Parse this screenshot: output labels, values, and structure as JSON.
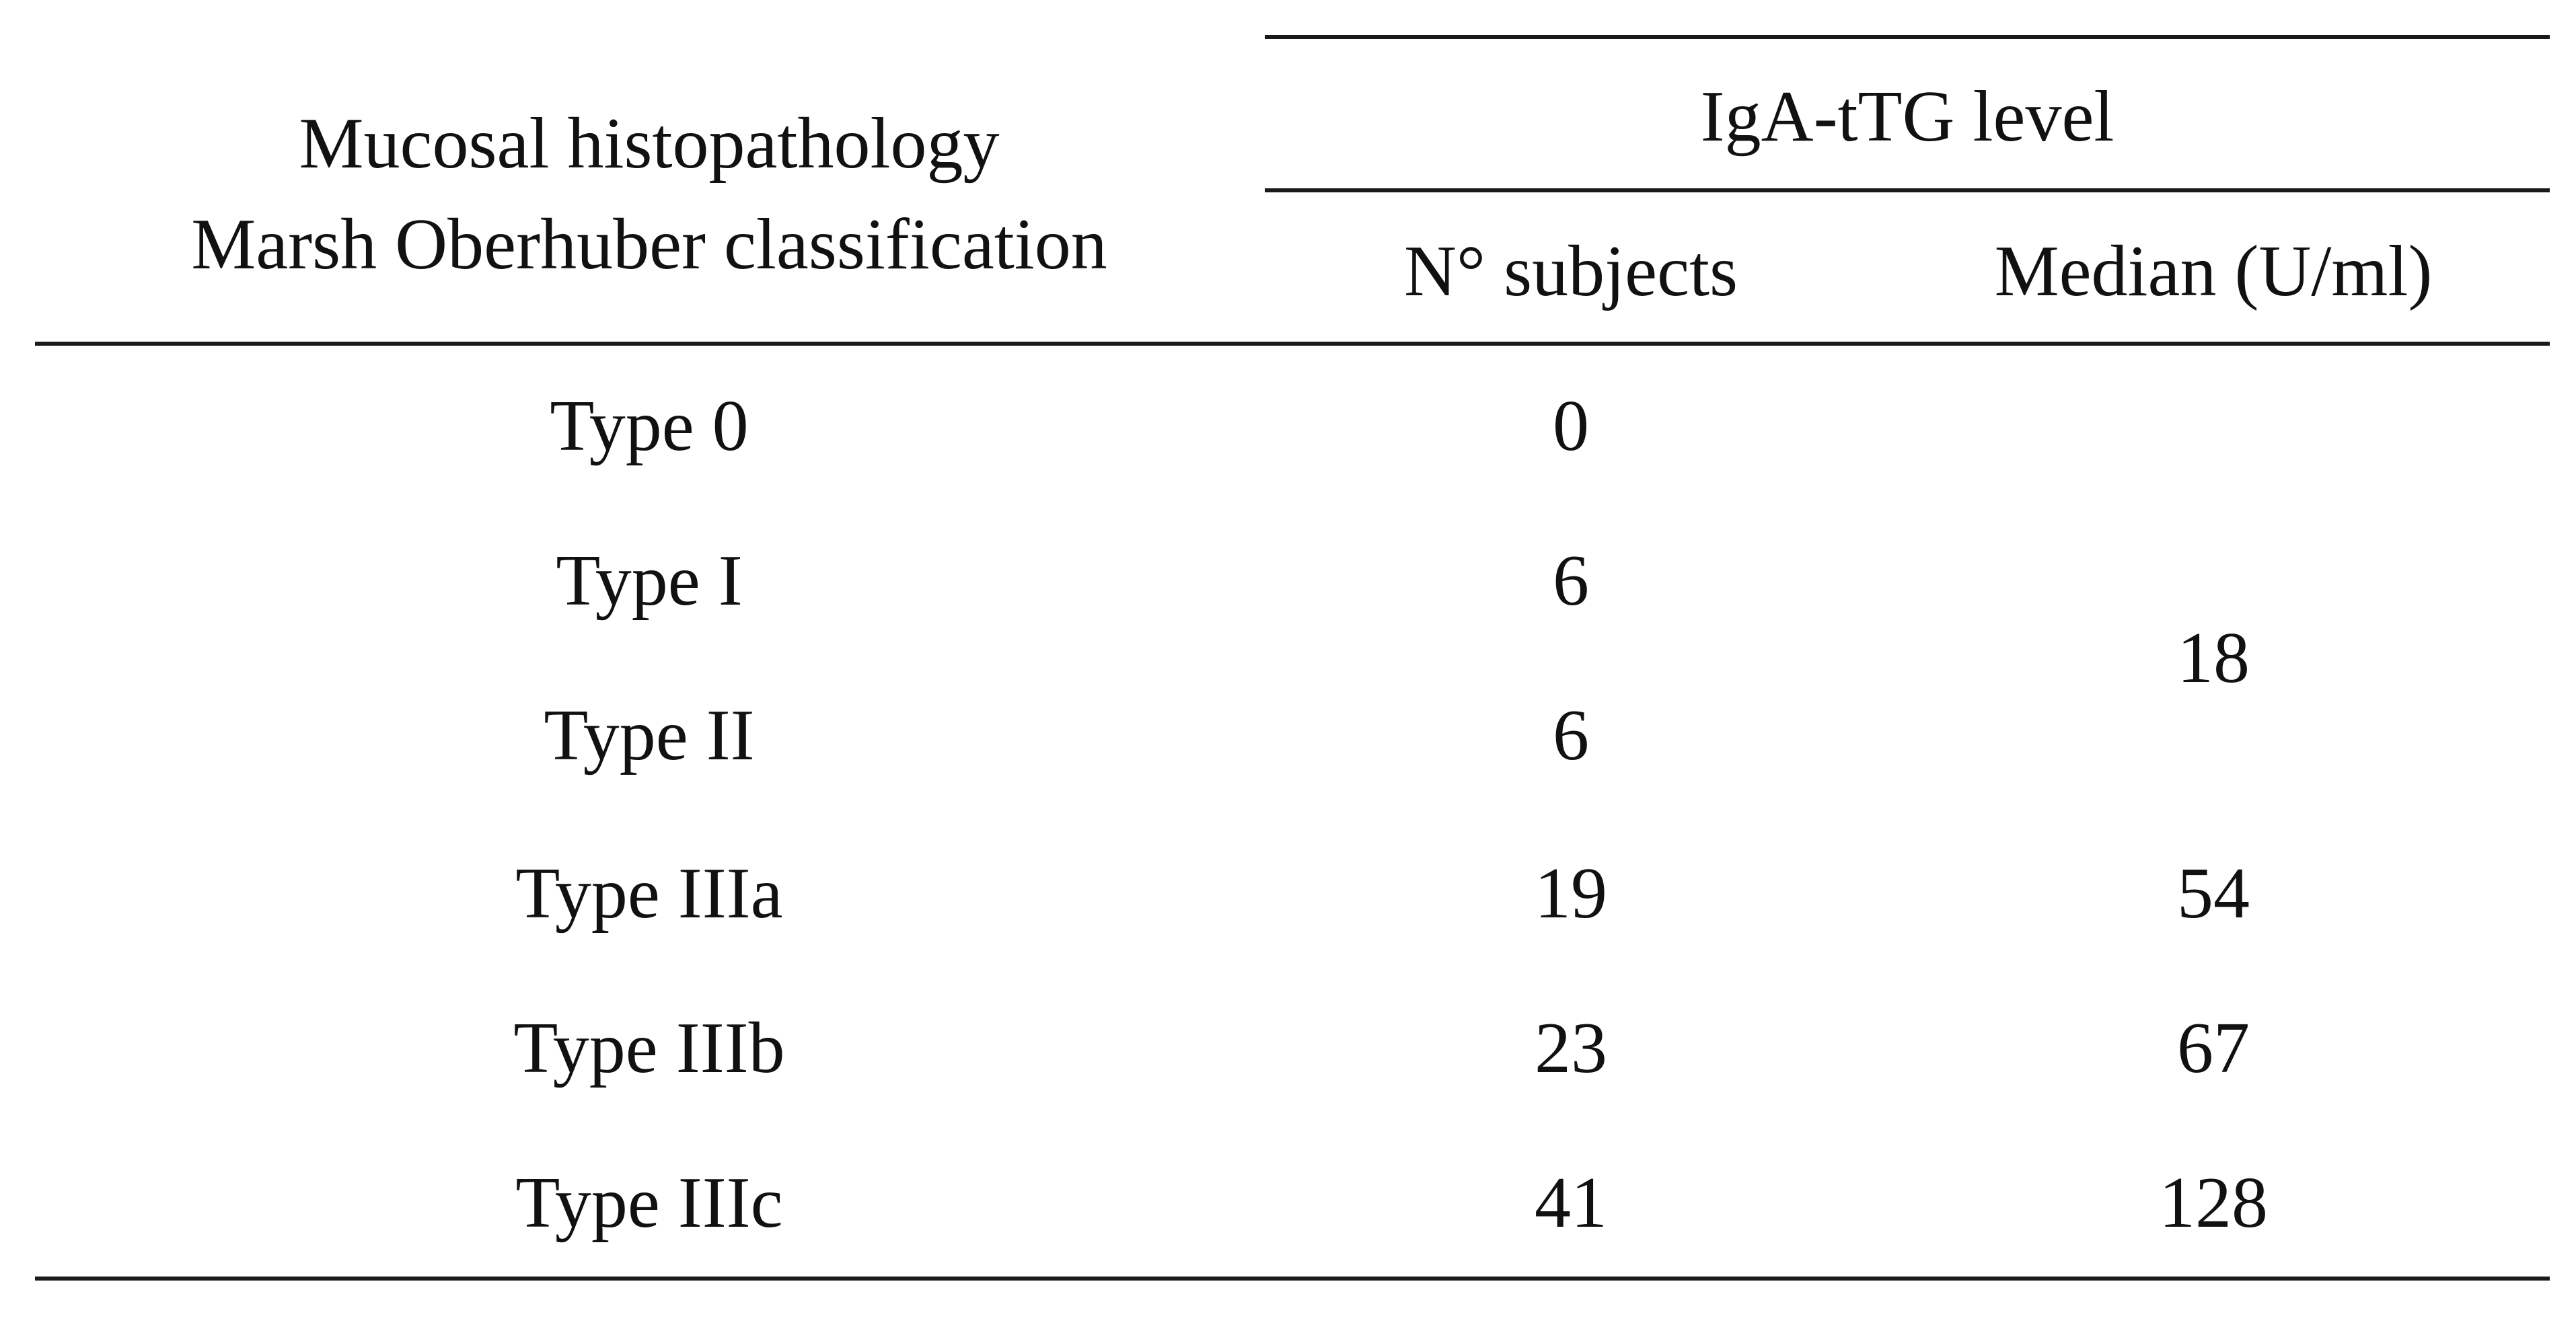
{
  "table": {
    "header": {
      "row_header_line1": "Mucosal histopathology",
      "row_header_line2": "Marsh Oberhuber classification",
      "group_header": "IgA-tTG level",
      "col_subjects": "N° subjects",
      "col_median": "Median (U/ml)"
    },
    "rows": [
      {
        "type": "Type 0",
        "subjects": "0",
        "median": ""
      },
      {
        "type": "Type I",
        "subjects": "6",
        "median": ""
      },
      {
        "type": "Type II",
        "subjects": "6",
        "median": ""
      },
      {
        "type": "Type IIIa",
        "subjects": "19",
        "median": "54"
      },
      {
        "type": "Type IIIb",
        "subjects": "23",
        "median": "67"
      },
      {
        "type": "Type IIIc",
        "subjects": "41",
        "median": "128"
      }
    ],
    "merged_median_types_I_II": "18"
  }
}
